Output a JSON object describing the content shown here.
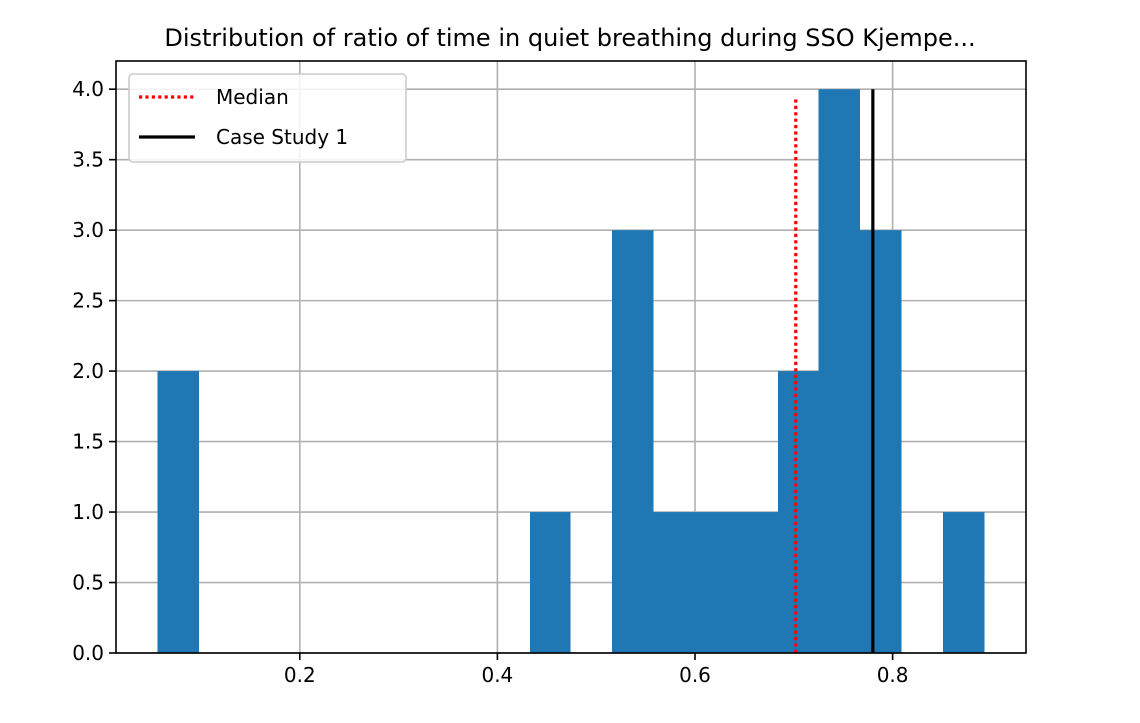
{
  "chart_data": {
    "type": "histogram",
    "title": "Distribution of ratio of time in quiet breathing during SSO Kjempe...",
    "xlabel": "",
    "ylabel": "",
    "xlim": [
      0.014,
      0.935
    ],
    "ylim": [
      0,
      4.2
    ],
    "grid": true,
    "legend_position": "top-left",
    "bins": [
      {
        "x0": 0.056,
        "x1": 0.098,
        "count": 2
      },
      {
        "x0": 0.098,
        "x1": 0.14,
        "count": 0
      },
      {
        "x0": 0.14,
        "x1": 0.182,
        "count": 0
      },
      {
        "x0": 0.182,
        "x1": 0.223,
        "count": 0
      },
      {
        "x0": 0.223,
        "x1": 0.265,
        "count": 0
      },
      {
        "x0": 0.265,
        "x1": 0.307,
        "count": 0
      },
      {
        "x0": 0.307,
        "x1": 0.349,
        "count": 0
      },
      {
        "x0": 0.349,
        "x1": 0.391,
        "count": 0
      },
      {
        "x0": 0.391,
        "x1": 0.433,
        "count": 0
      },
      {
        "x0": 0.433,
        "x1": 0.474,
        "count": 1
      },
      {
        "x0": 0.474,
        "x1": 0.516,
        "count": 0
      },
      {
        "x0": 0.516,
        "x1": 0.558,
        "count": 3
      },
      {
        "x0": 0.558,
        "x1": 0.6,
        "count": 1
      },
      {
        "x0": 0.6,
        "x1": 0.642,
        "count": 1
      },
      {
        "x0": 0.642,
        "x1": 0.684,
        "count": 1
      },
      {
        "x0": 0.684,
        "x1": 0.725,
        "count": 2
      },
      {
        "x0": 0.725,
        "x1": 0.767,
        "count": 4
      },
      {
        "x0": 0.767,
        "x1": 0.809,
        "count": 3
      },
      {
        "x0": 0.809,
        "x1": 0.851,
        "count": 0
      },
      {
        "x0": 0.851,
        "x1": 0.893,
        "count": 1
      }
    ],
    "bar_color": "#1f77b4",
    "lines": [
      {
        "name": "Median",
        "x": 0.702,
        "y_top": 3.95,
        "color": "#ff0000",
        "style": "dotted"
      },
      {
        "name": "Case Study 1",
        "x": 0.78,
        "y_top": 4.0,
        "color": "#000000",
        "style": "solid"
      }
    ],
    "x_ticks": [
      {
        "value": 0.2,
        "label": "0.2"
      },
      {
        "value": 0.4,
        "label": "0.4"
      },
      {
        "value": 0.6,
        "label": "0.6"
      },
      {
        "value": 0.8,
        "label": "0.8"
      }
    ],
    "y_ticks": [
      {
        "value": 0.0,
        "label": "0.0"
      },
      {
        "value": 0.5,
        "label": "0.5"
      },
      {
        "value": 1.0,
        "label": "1.0"
      },
      {
        "value": 1.5,
        "label": "1.5"
      },
      {
        "value": 2.0,
        "label": "2.0"
      },
      {
        "value": 2.5,
        "label": "2.5"
      },
      {
        "value": 3.0,
        "label": "3.0"
      },
      {
        "value": 3.5,
        "label": "3.5"
      },
      {
        "value": 4.0,
        "label": "4.0"
      }
    ],
    "legend": [
      {
        "label": "Median",
        "color": "#ff0000",
        "style": "dotted"
      },
      {
        "label": "Case Study 1",
        "color": "#000000",
        "style": "solid"
      }
    ]
  }
}
